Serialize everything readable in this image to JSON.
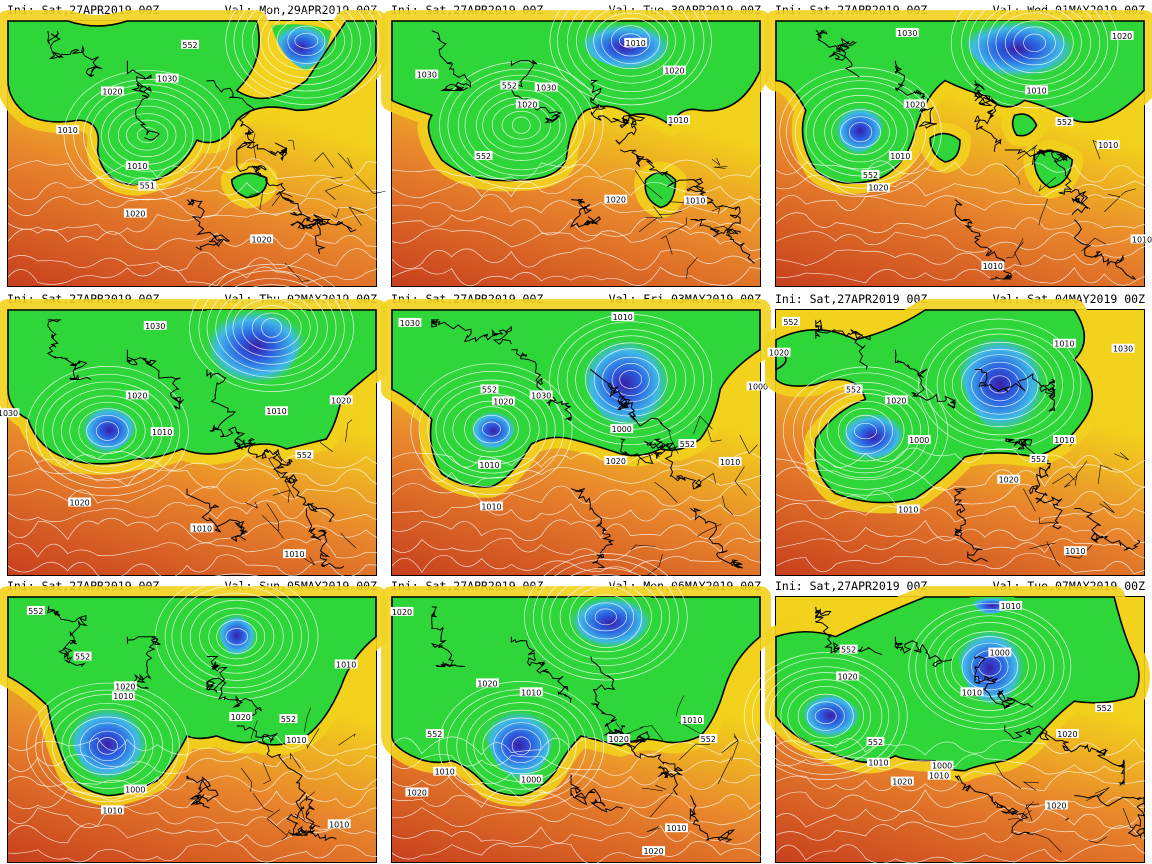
{
  "panels": [
    {
      "ini": "Ini: Sat,27APR2019 00Z",
      "val": "Val: Mon,29APR2019 00Z",
      "labels": [
        "552",
        "1030",
        "1020",
        "1010",
        "1010",
        "551",
        "1020",
        "1020"
      ]
    },
    {
      "ini": "Ini: Sat,27APR2019 00Z",
      "val": "Val: Tue,30APR2019 00Z",
      "labels": [
        "1010",
        "1030",
        "552",
        "1030",
        "1020",
        "1020",
        "552",
        "1010",
        "1020",
        "1010"
      ]
    },
    {
      "ini": "Ini: Sat,27APR2019 00Z",
      "val": "Val: Wed,01MAY2019 00Z",
      "labels": [
        "1030",
        "1020",
        "1010",
        "1020",
        "552",
        "1010",
        "1010",
        "552",
        "1020",
        "1010",
        "1010"
      ]
    },
    {
      "ini": "Ini: Sat,27APR2019 00Z",
      "val": "Val: Thu,02MAY2019 00Z",
      "labels": [
        "1030",
        "1020",
        "1010",
        "1030",
        "1010",
        "1020",
        "552",
        "1020",
        "1010",
        "1010"
      ]
    },
    {
      "ini": "Ini: Sat,27APR2019 00Z",
      "val": "Val: Fri,03MAY2019 00Z",
      "labels": [
        "1030",
        "1010",
        "552",
        "1020",
        "1030",
        "1000",
        "1000",
        "1010",
        "552",
        "1020",
        "1010",
        "1010"
      ]
    },
    {
      "ini": "Ini: Sat,27APR2019 00Z",
      "val": "Val: Sat,04MAY2019 00Z",
      "labels": [
        "552",
        "1020",
        "552",
        "1010",
        "1030",
        "1020",
        "1000",
        "1010",
        "552",
        "1020",
        "1010",
        "1010"
      ]
    },
    {
      "ini": "Ini: Sat,27APR2019 00Z",
      "val": "Val: Sun,05MAY2019 00Z",
      "labels": [
        "552",
        "552",
        "1020",
        "1010",
        "1020",
        "1010",
        "552",
        "1010",
        "1000",
        "1010",
        "1010"
      ]
    },
    {
      "ini": "Ini: Sat,27APR2019 00Z",
      "val": "Val: Mon,06MAY2019 00Z",
      "labels": [
        "1020",
        "1020",
        "1010",
        "552",
        "1010",
        "1020",
        "1010",
        "1000",
        "552",
        "1020",
        "1010",
        "1020"
      ]
    },
    {
      "ini": "Ini: Sat,27APR2019 00Z",
      "val": "Val: Tue,07MAY2019 00Z",
      "labels": [
        "1010",
        "552",
        "1000",
        "1020",
        "1010",
        "552",
        "1010",
        "1020",
        "1000",
        "1010",
        "552",
        "1020",
        "1020"
      ]
    }
  ],
  "colors": {
    "deep_red": "#c8401e",
    "orange": "#e8852c",
    "yellow": "#f2d21c",
    "green": "#2fd63a",
    "cyan": "#3fb8e8",
    "blue": "#2b5fe0",
    "violet": "#3a1ea8",
    "coast": "#000000",
    "contour": "#ffffff"
  }
}
